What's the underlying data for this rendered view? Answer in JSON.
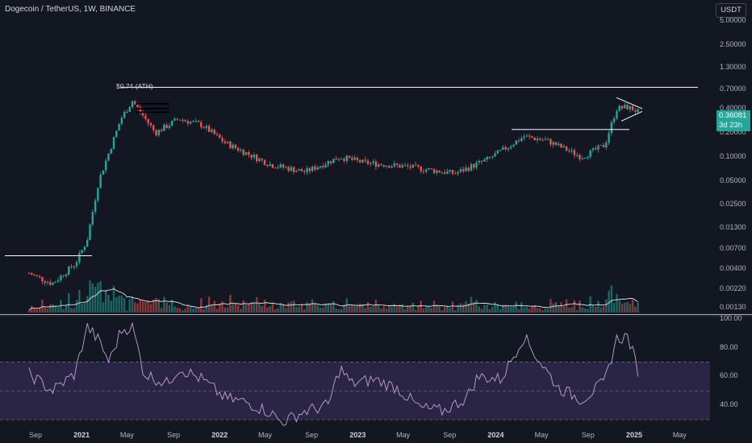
{
  "header": {
    "symbol_title": "Dogecoin / TetherUS, 1W, BINANCE",
    "currency_label": "USDT"
  },
  "price_badge": {
    "price": "0.36081",
    "countdown": "3d 23h",
    "color": "#26a69a"
  },
  "annotations": {
    "ath_label": "$0.74 (ATH)"
  },
  "colors": {
    "background": "#131722",
    "up_candle": "#26a69a",
    "down_candle": "#ef5350",
    "rsi_line": "#c79fd8",
    "rsi_band": "#2a2545",
    "grid_text": "#b2b5be"
  },
  "chart_data": [
    {
      "type": "candlestick",
      "title": "Dogecoin / TetherUS, 1W, BINANCE",
      "y_scale": "log",
      "ylim": [
        0.0013,
        5.0
      ],
      "y_ticks": [
        "5.00000",
        "2.50000",
        "1.30000",
        "0.70000",
        "0.40000",
        "0.20000",
        "0.10000",
        "0.05000",
        "0.02500",
        "0.01300",
        "0.00700",
        "0.00400",
        "0.00220",
        "0.00130"
      ],
      "x_ticks": [
        "Sep",
        "2021",
        "May",
        "Sep",
        "2022",
        "May",
        "Sep",
        "2023",
        "May",
        "Sep",
        "2024",
        "May",
        "Sep",
        "2025",
        "May"
      ],
      "x_start": "2020-08",
      "x_end": "2025-06",
      "approx_closes": [
        {
          "date": "2020-08",
          "close": 0.0035
        },
        {
          "date": "2020-10",
          "close": 0.0026
        },
        {
          "date": "2020-12",
          "close": 0.0046
        },
        {
          "date": "2021-01",
          "close": 0.009
        },
        {
          "date": "2021-02",
          "close": 0.05
        },
        {
          "date": "2021-04",
          "close": 0.3
        },
        {
          "date": "2021-05",
          "close": 0.5
        },
        {
          "date": "2021-07",
          "close": 0.2
        },
        {
          "date": "2021-09",
          "close": 0.3
        },
        {
          "date": "2021-11",
          "close": 0.25
        },
        {
          "date": "2022-01",
          "close": 0.15
        },
        {
          "date": "2022-05",
          "close": 0.08
        },
        {
          "date": "2022-08",
          "close": 0.065
        },
        {
          "date": "2022-11",
          "close": 0.1
        },
        {
          "date": "2023-01",
          "close": 0.085
        },
        {
          "date": "2023-05",
          "close": 0.075
        },
        {
          "date": "2023-09",
          "close": 0.062
        },
        {
          "date": "2023-12",
          "close": 0.095
        },
        {
          "date": "2024-03",
          "close": 0.18
        },
        {
          "date": "2024-05",
          "close": 0.16
        },
        {
          "date": "2024-08",
          "close": 0.1
        },
        {
          "date": "2024-10",
          "close": 0.14
        },
        {
          "date": "2024-11",
          "close": 0.4
        },
        {
          "date": "2024-12",
          "close": 0.42
        },
        {
          "date": "2025-01",
          "close": 0.36081
        }
      ],
      "levels": [
        {
          "label": "$0.74 (ATH)",
          "value": 0.74
        },
        {
          "value": 0.0058
        },
        {
          "value": 0.22
        }
      ],
      "volume_panel": true
    },
    {
      "type": "line",
      "ylim": [
        25,
        100
      ],
      "y_ticks": [
        "100.00",
        "80.00",
        "60.00",
        "40.00"
      ],
      "bands": [
        30,
        50,
        70
      ],
      "points": [
        {
          "date": "2020-08",
          "y": 62
        },
        {
          "date": "2020-10",
          "y": 50
        },
        {
          "date": "2020-12",
          "y": 62
        },
        {
          "date": "2021-01",
          "y": 95
        },
        {
          "date": "2021-02",
          "y": 85
        },
        {
          "date": "2021-03",
          "y": 70
        },
        {
          "date": "2021-04",
          "y": 92
        },
        {
          "date": "2021-05",
          "y": 95
        },
        {
          "date": "2021-06",
          "y": 62
        },
        {
          "date": "2021-08",
          "y": 55
        },
        {
          "date": "2021-09",
          "y": 66
        },
        {
          "date": "2021-11",
          "y": 58
        },
        {
          "date": "2022-01",
          "y": 45
        },
        {
          "date": "2022-03",
          "y": 42
        },
        {
          "date": "2022-05",
          "y": 35
        },
        {
          "date": "2022-06",
          "y": 28
        },
        {
          "date": "2022-08",
          "y": 36
        },
        {
          "date": "2022-10",
          "y": 40
        },
        {
          "date": "2022-11",
          "y": 66
        },
        {
          "date": "2022-12",
          "y": 55
        },
        {
          "date": "2023-02",
          "y": 58
        },
        {
          "date": "2023-04",
          "y": 52
        },
        {
          "date": "2023-06",
          "y": 38
        },
        {
          "date": "2023-08",
          "y": 36
        },
        {
          "date": "2023-10",
          "y": 45
        },
        {
          "date": "2023-11",
          "y": 60
        },
        {
          "date": "2024-01",
          "y": 58
        },
        {
          "date": "2024-03",
          "y": 88
        },
        {
          "date": "2024-04",
          "y": 75
        },
        {
          "date": "2024-06",
          "y": 52
        },
        {
          "date": "2024-08",
          "y": 44
        },
        {
          "date": "2024-10",
          "y": 56
        },
        {
          "date": "2024-11",
          "y": 86
        },
        {
          "date": "2024-12",
          "y": 88
        },
        {
          "date": "2025-01",
          "y": 61
        }
      ]
    }
  ]
}
